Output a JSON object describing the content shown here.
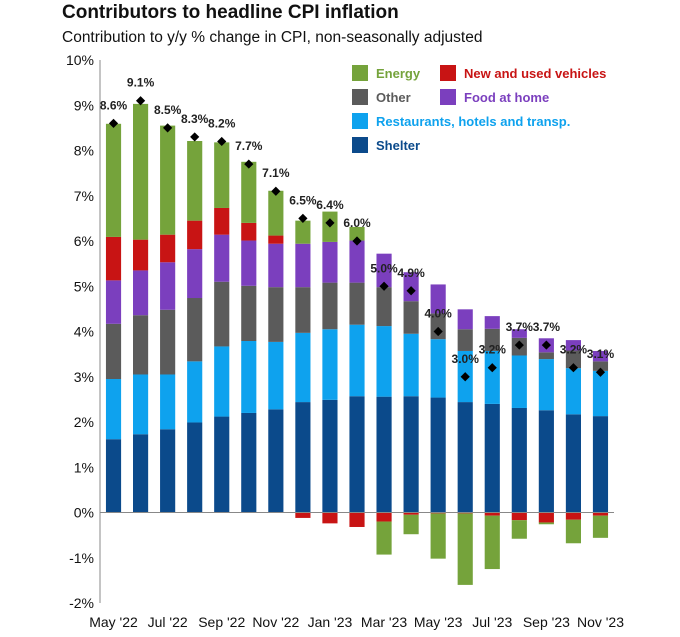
{
  "chart_data": {
    "type": "bar",
    "stacked": true,
    "title": "Contributors to headline CPI inflation",
    "subtitle": "Contribution to y/y % change in CPI, non-seasonally adjusted",
    "categories": [
      "May '22",
      "Jun '22",
      "Jul '22",
      "Aug '22",
      "Sep '22",
      "Oct '22",
      "Nov '22",
      "Dec '22",
      "Jan '23",
      "Feb '23",
      "Mar '23",
      "Apr '23",
      "May '23",
      "Jun '23",
      "Jul '23",
      "Aug '23",
      "Sep '23",
      "Oct '23",
      "Nov '23"
    ],
    "x_tick_labels": [
      "May '22",
      "Jul '22",
      "Sep '22",
      "Nov '22",
      "Jan '23",
      "Mar '23",
      "May '23",
      "Jul '23",
      "Sep '23",
      "Nov '23"
    ],
    "y_tick_labels": [
      "10%",
      "9%",
      "8%",
      "7%",
      "6%",
      "5%",
      "4%",
      "3%",
      "2%",
      "1%",
      "0%",
      "-1%",
      "-2%"
    ],
    "ylim": [
      -2,
      10
    ],
    "grid": false,
    "legend_position": "top-right",
    "colors": {
      "shelter": "#0b4a8b",
      "restaurants": "#0ea2ee",
      "other": "#5b5b5b",
      "food": "#7b3fbe",
      "vehicles": "#c81414",
      "energy": "#75a33b",
      "marker": "#000000"
    },
    "legend": [
      {
        "key": "energy",
        "label": "Energy",
        "color": "#75a33b"
      },
      {
        "key": "vehicles",
        "label": "New and used vehicles",
        "color": "#c81414"
      },
      {
        "key": "other",
        "label": "Other",
        "color": "#5b5b5b"
      },
      {
        "key": "food",
        "label": "Food at home",
        "color": "#7b3fbe"
      },
      {
        "key": "restaurants",
        "label": "Restaurants, hotels and transp.",
        "color": "#0ea2ee"
      },
      {
        "key": "shelter",
        "label": "Shelter",
        "color": "#0b4a8b"
      }
    ],
    "series": [
      {
        "key": "shelter",
        "name": "Shelter",
        "values": [
          1.62,
          1.73,
          1.84,
          1.99,
          2.12,
          2.2,
          2.28,
          2.44,
          2.49,
          2.57,
          2.56,
          2.57,
          2.54,
          2.44,
          2.4,
          2.31,
          2.26,
          2.17,
          2.13
        ]
      },
      {
        "key": "restaurants",
        "name": "Restaurants, hotels and transp.",
        "values": [
          1.33,
          1.32,
          1.21,
          1.35,
          1.55,
          1.59,
          1.49,
          1.53,
          1.56,
          1.58,
          1.56,
          1.38,
          1.29,
          1.13,
          1.17,
          1.16,
          1.13,
          1.02,
          1.0
        ]
      },
      {
        "key": "other",
        "name": "Other",
        "values": [
          1.22,
          1.31,
          1.43,
          1.4,
          1.43,
          1.22,
          1.21,
          1.01,
          1.03,
          0.93,
          0.86,
          0.72,
          0.57,
          0.48,
          0.49,
          0.39,
          0.15,
          0.39,
          0.21
        ]
      },
      {
        "key": "food",
        "name": "Food at home",
        "values": [
          0.96,
          0.99,
          1.05,
          1.08,
          1.04,
          1.0,
          0.96,
          0.96,
          0.9,
          0.93,
          0.74,
          0.64,
          0.64,
          0.44,
          0.28,
          0.19,
          0.31,
          0.23,
          0.23
        ]
      },
      {
        "key": "vehicles",
        "name": "New and used vehicles",
        "values": [
          0.96,
          0.68,
          0.61,
          0.63,
          0.59,
          0.39,
          0.18,
          -0.12,
          -0.24,
          -0.32,
          -0.2,
          -0.05,
          -0.02,
          -0.02,
          -0.07,
          -0.17,
          -0.22,
          -0.16,
          -0.07
        ]
      },
      {
        "key": "energy",
        "name": "Energy",
        "values": [
          2.5,
          3.0,
          2.41,
          1.76,
          1.45,
          1.35,
          0.99,
          0.51,
          0.67,
          0.3,
          -0.73,
          -0.43,
          -1.0,
          -1.58,
          -1.18,
          -0.41,
          -0.04,
          -0.52,
          -0.49
        ]
      }
    ],
    "headline": {
      "name": "Headline CPI",
      "values": [
        8.6,
        9.1,
        8.5,
        8.3,
        8.2,
        7.7,
        7.1,
        6.5,
        6.4,
        6.0,
        5.0,
        4.9,
        4.0,
        3.0,
        3.2,
        3.7,
        3.7,
        3.2,
        3.1
      ],
      "labels": [
        "8.6%",
        "9.1%",
        "8.5%",
        "8.3%",
        "8.2%",
        "7.7%",
        "7.1%",
        "6.5%",
        "6.4%",
        "6.0%",
        "5.0%",
        "4.9%",
        "4.0%",
        "3.0%",
        "3.2%",
        "3.7%",
        "3.7%",
        "3.2%",
        "3.1%"
      ]
    }
  }
}
